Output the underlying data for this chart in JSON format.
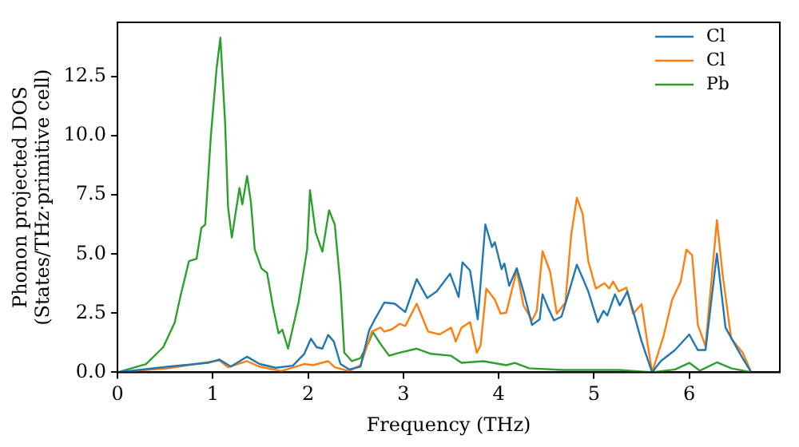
{
  "chart_data": {
    "type": "line",
    "xlabel": "Frequency (THz)",
    "ylabel": "Phonon projected DOS\n(States/THz·primitive cell)",
    "xlim": [
      0,
      6.95
    ],
    "ylim": [
      0,
      14.8
    ],
    "xticks": [
      0,
      1,
      2,
      3,
      4,
      5,
      6
    ],
    "yticks": [
      {
        "value": 0,
        "label": "0.0"
      },
      2.5,
      {
        "value": 5,
        "label": "5.0"
      },
      7.5,
      {
        "value": 10,
        "label": "10.0"
      },
      12.5
    ],
    "grid": false,
    "legend": "top right",
    "marker": "none",
    "line_style": "solid",
    "series": [
      {
        "name": "Cl",
        "color": "#1f77b4",
        "x": [
          0,
          0.54,
          0.95,
          1.07,
          1.19,
          1.36,
          1.49,
          1.66,
          1.84,
          1.96,
          2.03,
          2.09,
          2.15,
          2.21,
          2.27,
          2.34,
          2.43,
          2.55,
          2.64,
          2.7,
          2.8,
          2.91,
          3.02,
          3.14,
          3.25,
          3.35,
          3.49,
          3.58,
          3.62,
          3.7,
          3.78,
          3.86,
          3.93,
          3.96,
          4.03,
          4.06,
          4.11,
          4.19,
          4.26,
          4.35,
          4.43,
          4.46,
          4.52,
          4.58,
          4.66,
          4.73,
          4.82,
          4.88,
          4.94,
          5.04,
          5.1,
          5.14,
          5.22,
          5.27,
          5.35,
          5.41,
          5.5,
          5.61,
          5.7,
          5.85,
          6.0,
          6.09,
          6.17,
          6.29,
          6.38,
          6.56,
          6.65
        ],
        "values": [
          0,
          0.24,
          0.4,
          0.54,
          0.24,
          0.66,
          0.35,
          0.19,
          0.28,
          0.78,
          1.42,
          1.06,
          1.0,
          1.58,
          1.3,
          0.35,
          0.12,
          0.24,
          1.77,
          2.24,
          2.95,
          2.9,
          2.55,
          3.94,
          3.14,
          3.42,
          4.17,
          3.18,
          4.65,
          4.3,
          2.24,
          6.25,
          5.3,
          5.5,
          4.36,
          4.6,
          3.66,
          4.4,
          3.42,
          2.0,
          2.24,
          3.3,
          2.71,
          2.19,
          2.36,
          3.3,
          4.55,
          4.0,
          3.42,
          2.12,
          2.6,
          2.4,
          3.3,
          2.83,
          3.42,
          2.6,
          1.3,
          0,
          0.47,
          0.94,
          1.6,
          0.94,
          0.94,
          5.02,
          1.89,
          0.59,
          0
        ]
      },
      {
        "name": "Cl",
        "color": "#ff7f0e",
        "x": [
          0,
          0.54,
          1.01,
          1.07,
          1.16,
          1.36,
          1.49,
          1.72,
          1.96,
          2.05,
          2.21,
          2.28,
          2.43,
          2.55,
          2.67,
          2.76,
          2.8,
          2.88,
          2.96,
          3.02,
          3.14,
          3.26,
          3.38,
          3.5,
          3.55,
          3.61,
          3.7,
          3.77,
          3.81,
          3.87,
          3.96,
          4.02,
          4.08,
          4.19,
          4.26,
          4.35,
          4.4,
          4.46,
          4.54,
          4.61,
          4.7,
          4.76,
          4.82,
          4.88,
          4.94,
          5.02,
          5.11,
          5.16,
          5.2,
          5.26,
          5.34,
          5.41,
          5.5,
          5.55,
          5.61,
          5.73,
          5.82,
          5.91,
          5.97,
          6.03,
          6.09,
          6.17,
          6.29,
          6.35,
          6.44,
          6.56,
          6.65
        ],
        "values": [
          0,
          0.17,
          0.47,
          0.5,
          0.21,
          0.47,
          0.24,
          0.05,
          0.35,
          0.3,
          0.47,
          0.21,
          0.05,
          0.3,
          1.72,
          1.89,
          1.72,
          1.82,
          2.05,
          1.96,
          2.9,
          1.72,
          1.6,
          1.89,
          1.3,
          1.89,
          2.12,
          0.83,
          1.13,
          3.54,
          3.07,
          2.48,
          2.52,
          4.32,
          2.83,
          2.19,
          2.6,
          5.12,
          4.25,
          2.48,
          2.95,
          5.78,
          7.38,
          6.72,
          4.7,
          3.54,
          3.77,
          3.54,
          3.84,
          3.42,
          3.58,
          2.48,
          2.88,
          1.53,
          0,
          1.53,
          3.07,
          3.84,
          5.19,
          4.95,
          2.0,
          1.11,
          6.44,
          4.13,
          1.42,
          0.83,
          0
        ]
      },
      {
        "name": "Pb",
        "color": "#2ca02c",
        "x": [
          0,
          0.3,
          0.48,
          0.6,
          0.66,
          0.75,
          0.83,
          0.88,
          0.92,
          0.98,
          1.04,
          1.08,
          1.13,
          1.16,
          1.2,
          1.28,
          1.31,
          1.36,
          1.4,
          1.44,
          1.51,
          1.57,
          1.63,
          1.69,
          1.73,
          1.79,
          1.9,
          1.99,
          2.02,
          2.08,
          2.15,
          2.22,
          2.28,
          2.34,
          2.38,
          2.46,
          2.55,
          2.64,
          2.68,
          2.76,
          2.85,
          2.96,
          3.14,
          3.29,
          3.5,
          3.61,
          3.84,
          4.08,
          4.17,
          4.32,
          4.67,
          5.26,
          5.61,
          5.85,
          6.0,
          6.11,
          6.29,
          6.44,
          6.65
        ],
        "values": [
          0,
          0.35,
          1.06,
          2.1,
          3.2,
          4.7,
          4.8,
          6.1,
          6.25,
          10.0,
          12.85,
          14.15,
          10.5,
          7.0,
          5.7,
          7.8,
          7.1,
          8.3,
          7.2,
          5.2,
          4.4,
          4.2,
          2.8,
          1.65,
          1.8,
          1.0,
          2.95,
          5.2,
          7.7,
          5.9,
          5.1,
          6.85,
          6.25,
          3.65,
          0.83,
          0.47,
          0.6,
          1.3,
          1.7,
          1.2,
          0.7,
          0.83,
          1.0,
          0.78,
          0.7,
          0.4,
          0.47,
          0.3,
          0.4,
          0.17,
          0.1,
          0.1,
          0,
          0.12,
          0.4,
          0.07,
          0.42,
          0.17,
          0
        ]
      }
    ]
  }
}
